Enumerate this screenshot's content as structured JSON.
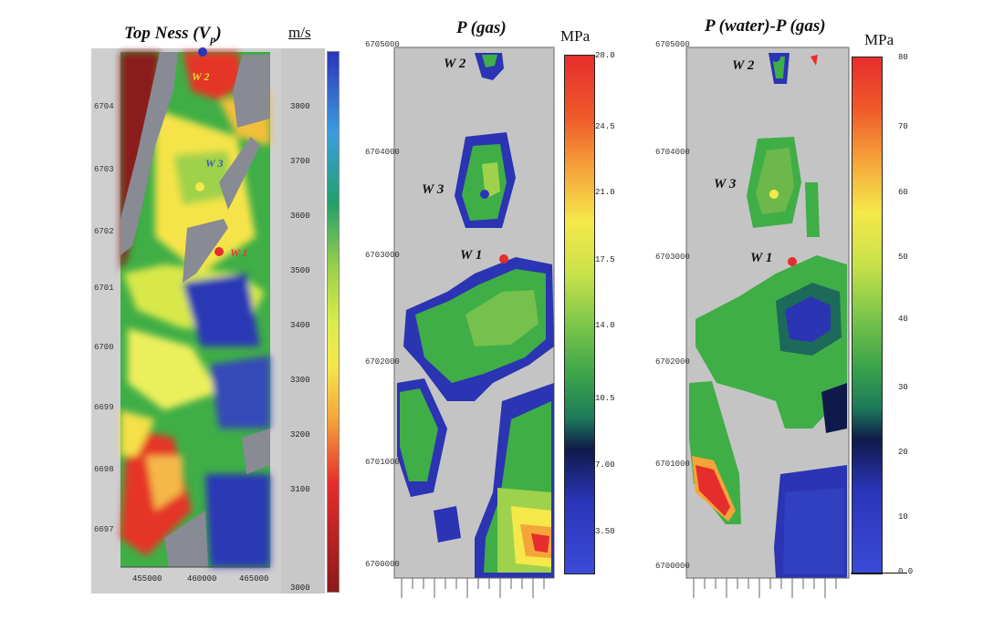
{
  "panels": [
    {
      "title": "Top Ness (V",
      "title_sub": "p",
      "title_end": ")",
      "unit": "m/s",
      "colorbar_ticks": [
        "3800",
        "3700",
        "3600",
        "3500",
        "3400",
        "3300",
        "3200",
        "3100",
        "3000"
      ],
      "y_ticks": [
        "6704",
        "6703",
        "6702",
        "6701",
        "6700",
        "6699",
        "6698",
        "6697"
      ],
      "x_ticks": [
        "455000",
        "460000",
        "465000"
      ],
      "wells": [
        {
          "name": "W 2"
        },
        {
          "name": "W 3"
        },
        {
          "name": "W 1"
        }
      ]
    },
    {
      "title": "P (gas)",
      "unit": "MPa",
      "colorbar_ticks": [
        "28.0",
        "24.5",
        "21.0",
        "17.5",
        "14.0",
        "10.5",
        "7.00",
        "3.50"
      ],
      "y_ticks": [
        "6705000",
        "6704000",
        "6703000",
        "6702000",
        "6701000",
        "6700000"
      ],
      "wells": [
        {
          "name": "W 2"
        },
        {
          "name": "W 3"
        },
        {
          "name": "W 1"
        }
      ]
    },
    {
      "title": "P (water)-P (gas)",
      "unit": "MPa",
      "colorbar_ticks": [
        "80",
        "70",
        "60",
        "50",
        "40",
        "30",
        "20",
        "10",
        "0.0"
      ],
      "y_ticks": [
        "6705000",
        "6704000",
        "6703000",
        "6702000",
        "6701000",
        "6700000"
      ],
      "wells": [
        {
          "name": "W 2"
        },
        {
          "name": "W 3"
        },
        {
          "name": "W 1"
        }
      ]
    }
  ],
  "colors": {
    "map_gray": "#b5b5b5",
    "dark_red": "#8b1a1a",
    "blue": "#2a35b8",
    "green": "#3cb043",
    "yellow": "#f5e84a",
    "red": "#e62d2d"
  }
}
